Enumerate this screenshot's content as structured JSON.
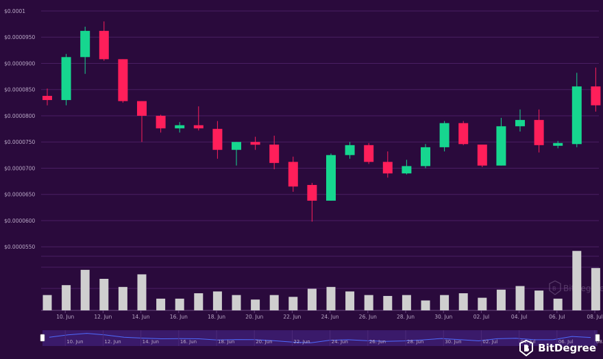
{
  "chart_data": {
    "type": "candlestick",
    "y_axis_labels": [
      "$0.0001",
      "$0.0000950",
      "$0.0000900",
      "$0.0000850",
      "$0.0000800",
      "$0.0000750",
      "$0.0000700",
      "$0.0000650",
      "$0.0000600",
      "$0.0000550"
    ],
    "y_axis_values": [
      0.0001,
      9.5e-05,
      9e-05,
      8.5e-05,
      8e-05,
      7.5e-05,
      7e-05,
      6.5e-05,
      6e-05,
      5.5e-05
    ],
    "ylim": [
      5.32e-05,
      0.0001
    ],
    "x_tick_labels": [
      "10. Jun",
      "12. Jun",
      "14. Jun",
      "16. Jun",
      "18. Jun",
      "20. Jun",
      "22. Jun",
      "24. Jun",
      "26. Jun",
      "28. Jun",
      "30. Jun",
      "02. Jul",
      "04. Jul",
      "06. Jul",
      "08. Jul"
    ],
    "x_tick_positions": [
      1,
      3,
      5,
      7,
      9,
      11,
      13,
      15,
      17,
      19,
      21,
      23,
      25,
      27,
      29
    ],
    "candles": [
      {
        "o": 8.38e-05,
        "h": 8.52e-05,
        "l": 8.2e-05,
        "c": 8.3e-05
      },
      {
        "o": 8.3e-05,
        "h": 9.18e-05,
        "l": 8.2e-05,
        "c": 9.12e-05
      },
      {
        "o": 9.12e-05,
        "h": 9.7e-05,
        "l": 8.8e-05,
        "c": 9.62e-05
      },
      {
        "o": 9.62e-05,
        "h": 9.8e-05,
        "l": 9.05e-05,
        "c": 9.08e-05
      },
      {
        "o": 9.08e-05,
        "h": 9.08e-05,
        "l": 8.25e-05,
        "c": 8.28e-05
      },
      {
        "o": 8.28e-05,
        "h": 8.28e-05,
        "l": 7.5e-05,
        "c": 8e-05
      },
      {
        "o": 8e-05,
        "h": 8.02e-05,
        "l": 7.68e-05,
        "c": 7.76e-05
      },
      {
        "o": 7.76e-05,
        "h": 7.88e-05,
        "l": 7.68e-05,
        "c": 7.82e-05
      },
      {
        "o": 7.82e-05,
        "h": 8.18e-05,
        "l": 7.72e-05,
        "c": 7.76e-05
      },
      {
        "o": 7.75e-05,
        "h": 7.9e-05,
        "l": 7.18e-05,
        "c": 7.35e-05
      },
      {
        "o": 7.35e-05,
        "h": 7.5e-05,
        "l": 7.05e-05,
        "c": 7.5e-05
      },
      {
        "o": 7.5e-05,
        "h": 7.6e-05,
        "l": 7.35e-05,
        "c": 7.45e-05
      },
      {
        "o": 7.45e-05,
        "h": 7.62e-05,
        "l": 6.98e-05,
        "c": 7.1e-05
      },
      {
        "o": 7.12e-05,
        "h": 7.22e-05,
        "l": 6.55e-05,
        "c": 6.65e-05
      },
      {
        "o": 6.68e-05,
        "h": 6.72e-05,
        "l": 5.98e-05,
        "c": 6.38e-05
      },
      {
        "o": 6.38e-05,
        "h": 7.28e-05,
        "l": 6.38e-05,
        "c": 7.25e-05
      },
      {
        "o": 7.25e-05,
        "h": 7.5e-05,
        "l": 7.18e-05,
        "c": 7.44e-05
      },
      {
        "o": 7.44e-05,
        "h": 7.48e-05,
        "l": 7.08e-05,
        "c": 7.12e-05
      },
      {
        "o": 7.12e-05,
        "h": 7.32e-05,
        "l": 6.82e-05,
        "c": 6.9e-05
      },
      {
        "o": 6.9e-05,
        "h": 7.16e-05,
        "l": 6.88e-05,
        "c": 7.04e-05
      },
      {
        "o": 7.04e-05,
        "h": 7.46e-05,
        "l": 7e-05,
        "c": 7.4e-05
      },
      {
        "o": 7.4e-05,
        "h": 7.9e-05,
        "l": 7.32e-05,
        "c": 7.86e-05
      },
      {
        "o": 7.86e-05,
        "h": 7.9e-05,
        "l": 7.44e-05,
        "c": 7.46e-05
      },
      {
        "o": 7.45e-05,
        "h": 7.45e-05,
        "l": 7.02e-05,
        "c": 7.05e-05
      },
      {
        "o": 7.05e-05,
        "h": 7.96e-05,
        "l": 7.05e-05,
        "c": 7.8e-05
      },
      {
        "o": 7.8e-05,
        "h": 8.12e-05,
        "l": 7.7e-05,
        "c": 7.92e-05
      },
      {
        "o": 7.92e-05,
        "h": 8.12e-05,
        "l": 7.3e-05,
        "c": 7.44e-05
      },
      {
        "o": 7.44e-05,
        "h": 7.52e-05,
        "l": 7.38e-05,
        "c": 7.48e-05
      },
      {
        "o": 7.46e-05,
        "h": 8.82e-05,
        "l": 7.4e-05,
        "c": 8.56e-05
      },
      {
        "o": 8.56e-05,
        "h": 8.92e-05,
        "l": 8.08e-05,
        "c": 8.2e-05
      }
    ],
    "volumes": [
      17,
      28,
      45,
      35,
      26,
      40,
      13,
      13,
      19,
      21,
      17,
      12,
      17,
      15,
      24,
      26,
      21,
      17,
      16,
      17,
      11,
      17,
      19,
      14,
      23,
      27,
      22,
      13,
      66,
      47
    ],
    "volume_max": 70,
    "colors": {
      "up": "#16d68f",
      "down": "#ff1f5a",
      "volume": "#cfcfcf",
      "background": "#2a0a3c",
      "grid": "#4a1f63",
      "axis_text": "#b9a8c6",
      "navigator_bg": "#3a1a6a",
      "navigator_line": "#4f6bff"
    },
    "grid": true
  },
  "watermark": {
    "text": "BitDegree",
    "icon": "bitdegree-logo-icon"
  },
  "brand": {
    "text": "BitDegree",
    "icon": "bitdegree-logo-icon"
  }
}
